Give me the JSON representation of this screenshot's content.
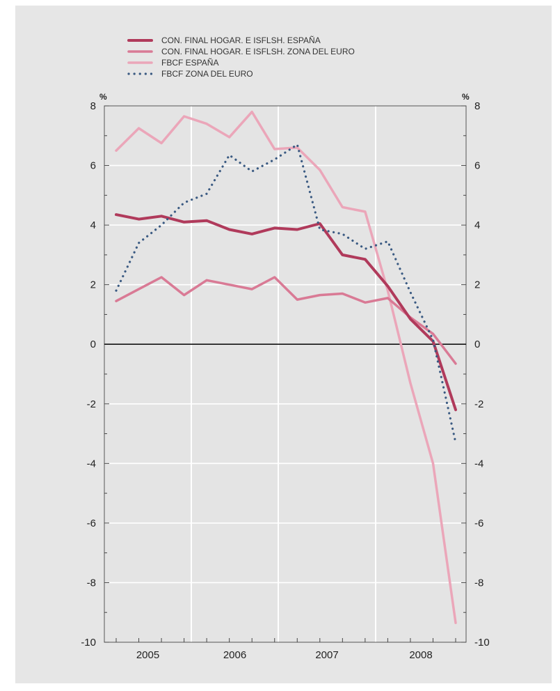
{
  "chart_data": {
    "type": "line",
    "title": "",
    "ylabel_left": "%",
    "ylabel_right": "%",
    "ylim": [
      -10,
      8
    ],
    "yticks": [
      "8",
      "6",
      "4",
      "2",
      "0",
      "-2",
      "-4",
      "-6",
      "-8",
      "-10"
    ],
    "year_labels": [
      "2005",
      "2006",
      "2007",
      "2008"
    ],
    "x": [
      "2005-I",
      "2005-II",
      "2005-III",
      "2005-IV",
      "2006-I",
      "2006-II",
      "2006-III",
      "2006-IV",
      "2007-I",
      "2007-II",
      "2007-III",
      "2007-IV",
      "2008-I",
      "2008-II",
      "2008-III",
      "2008-IV"
    ],
    "grid": true,
    "legend_position": "top-left",
    "series": [
      {
        "name": "CON. FINAL HOGAR. E ISFLSH. ESPAÑA",
        "color": "#b03a5b",
        "style": "solid-thick",
        "values": [
          4.35,
          4.2,
          4.3,
          4.1,
          4.15,
          3.85,
          3.7,
          3.9,
          3.85,
          4.05,
          3.0,
          2.85,
          1.95,
          0.85,
          0.1,
          -2.2
        ]
      },
      {
        "name": "CON. FINAL HOGAR. E ISFLSH. ZONA DEL EURO",
        "color": "#d97a95",
        "style": "solid",
        "values": [
          1.45,
          1.85,
          2.25,
          1.65,
          2.15,
          2.0,
          1.85,
          2.25,
          1.5,
          1.65,
          1.7,
          1.4,
          1.55,
          0.9,
          0.35,
          -0.65
        ]
      },
      {
        "name": "FBCF ESPAÑA",
        "color": "#eba6b9",
        "style": "solid-light",
        "values": [
          6.5,
          7.25,
          6.75,
          7.65,
          7.4,
          6.95,
          7.8,
          6.55,
          6.6,
          5.85,
          4.6,
          4.45,
          1.8,
          -1.3,
          -4.0,
          -9.35
        ]
      },
      {
        "name": "FBCF ZONA DEL EURO",
        "color": "#3a5a82",
        "style": "dotted",
        "values": [
          1.8,
          3.4,
          4.0,
          4.75,
          5.05,
          6.35,
          5.8,
          6.2,
          6.7,
          3.85,
          3.7,
          3.2,
          3.45,
          1.75,
          0.15,
          -3.3
        ]
      }
    ]
  }
}
